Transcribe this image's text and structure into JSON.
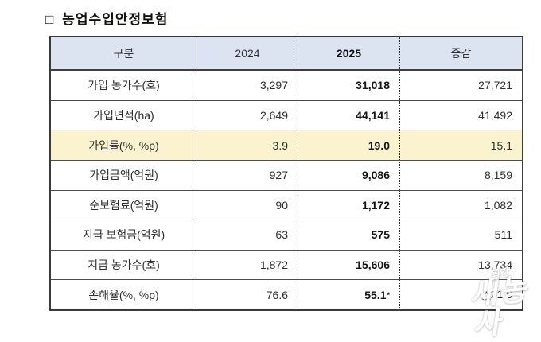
{
  "title": {
    "bullet": "□",
    "text": "농업수입안정보험"
  },
  "table": {
    "columns": [
      "구분",
      "2024",
      "2025",
      "증감"
    ],
    "rows": [
      {
        "label": "가입 농가수(호)",
        "y2024": "3,297",
        "y2025": "31,018",
        "note": "",
        "delta": "27,721"
      },
      {
        "label": "가입면적(ha)",
        "y2024": "2,649",
        "y2025": "44,141",
        "note": "",
        "delta": "41,492"
      },
      {
        "label": "가입률(%, %p)",
        "y2024": "3.9",
        "y2025": "19.0",
        "note": "",
        "delta": "15.1"
      },
      {
        "label": "가입금액(억원)",
        "y2024": "927",
        "y2025": "9,086",
        "note": "",
        "delta": "8,159"
      },
      {
        "label": "순보험료(억원)",
        "y2024": "90",
        "y2025": "1,172",
        "note": "",
        "delta": "1,082"
      },
      {
        "label": "지급 보험금(억원)",
        "y2024": "63",
        "y2025": "575",
        "note": "",
        "delta": "511"
      },
      {
        "label": "지급 농가수(호)",
        "y2024": "1,872",
        "y2025": "15,606",
        "note": "",
        "delta": "13,734"
      },
      {
        "label": "손해율(%, %p)",
        "y2024": "76.6",
        "y2025": "55.1",
        "note": "*",
        "delta": "△21.6"
      }
    ],
    "highlight_row_index": 2
  },
  "watermark": {
    "small": "월간",
    "large": "새농사"
  },
  "colors": {
    "header_bg": "#dde4f1",
    "highlight_bg": "#fbf2ce",
    "outer_border": "#3b3b3b",
    "row_border": "#4d4d4d",
    "bold_text": "#141414"
  }
}
